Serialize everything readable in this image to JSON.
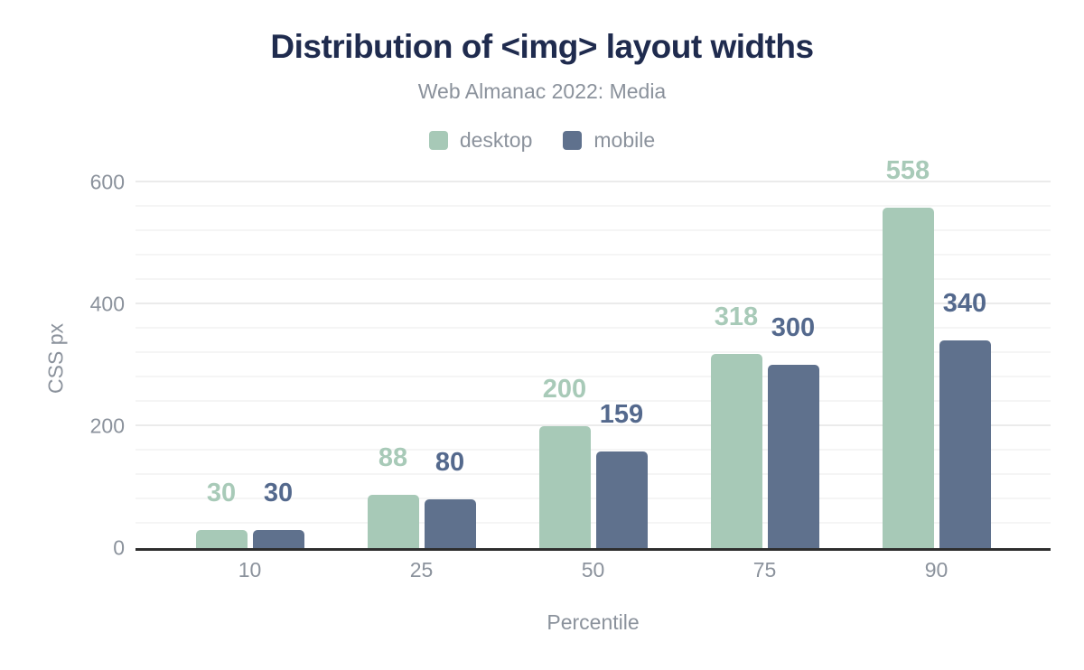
{
  "chart_data": {
    "type": "bar",
    "title": "Distribution of <img> layout widths",
    "subtitle": "Web Almanac 2022: Media",
    "categories": [
      "10",
      "25",
      "50",
      "75",
      "90"
    ],
    "series": [
      {
        "name": "desktop",
        "color": "#a7c9b7",
        "label_color": "#a8cab8",
        "values": [
          30,
          88,
          200,
          318,
          558
        ]
      },
      {
        "name": "mobile",
        "color": "#5f718d",
        "label_color": "#54698d",
        "values": [
          30,
          80,
          159,
          300,
          340
        ]
      }
    ],
    "xlabel": "Percentile",
    "ylabel": "CSS px",
    "ylim": [
      0,
      620
    ],
    "yticks": [
      0,
      200,
      400,
      600
    ],
    "minor_grid_step": 40,
    "grid": "on",
    "legend_position": "top"
  },
  "colors": {
    "title_navy": "#1f2b4e",
    "axis_text_gray": "#8b929c",
    "baseline": "#2e2e2e",
    "minor_gridline": "#f5f5f5",
    "major_gridline": "#ebebeb",
    "background": "#ffffff"
  }
}
